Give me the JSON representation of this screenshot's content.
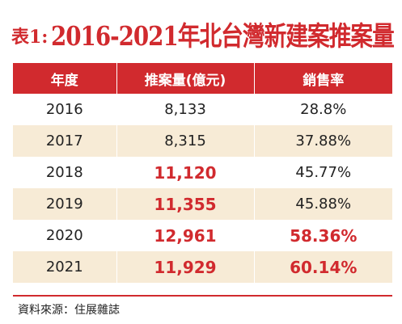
{
  "title": {
    "prefix": "表1:",
    "main": "2016-2021年北台灣新建案推案量"
  },
  "table": {
    "headers": [
      "年度",
      "推案量(億元)",
      "銷售率"
    ],
    "rows": [
      {
        "year": "2016",
        "volume": "8,133",
        "rate": "28.8%"
      },
      {
        "year": "2017",
        "volume": "8,315",
        "rate": "37.88%"
      },
      {
        "year": "2018",
        "volume": "11,120",
        "rate": "45.77%"
      },
      {
        "year": "2019",
        "volume": "11,355",
        "rate": "45.88%"
      },
      {
        "year": "2020",
        "volume": "12,961",
        "rate": "58.36%"
      },
      {
        "year": "2021",
        "volume": "11,929",
        "rate": "60.14%"
      }
    ]
  },
  "source": "資料來源：住展雜誌",
  "colors": {
    "accent": "#d12a2e",
    "stripe": "#f7ebd6"
  }
}
